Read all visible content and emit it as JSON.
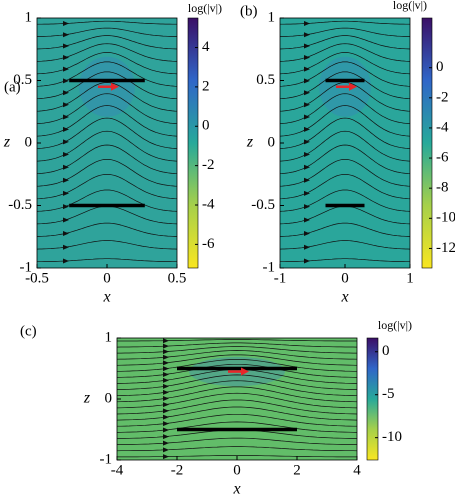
{
  "chart_data": [
    {
      "type": "streamline",
      "panel_label": "(a)",
      "xlabel": "x",
      "ylabel": "z",
      "xlim": [
        -0.5,
        0.5
      ],
      "ylim": [
        -1,
        1
      ],
      "xticks": [
        -0.5,
        0,
        0.5
      ],
      "yticks": [
        -1,
        -0.5,
        0,
        0.5,
        1
      ],
      "colorbar": {
        "label": "log(|v|)",
        "lim": [
          -7.2,
          5.5
        ],
        "ticks": [
          -6,
          -4,
          -2,
          0,
          2,
          4
        ]
      }
    },
    {
      "type": "streamline",
      "panel_label": "(b)",
      "xlabel": "x",
      "ylabel": "z",
      "xlim": [
        -1,
        1
      ],
      "ylim": [
        -1,
        1
      ],
      "xticks": [
        -1,
        0,
        1
      ],
      "yticks": [
        -1,
        -0.5,
        0,
        0.5,
        1
      ],
      "colorbar": {
        "label": "log(|v|)",
        "lim": [
          -13.3,
          3.3
        ],
        "ticks": [
          -12,
          -10,
          -8,
          -6,
          -4,
          -2,
          0
        ]
      }
    },
    {
      "type": "streamline",
      "panel_label": "(c)",
      "xlabel": "x",
      "ylabel": "z",
      "xlim": [
        -4,
        4
      ],
      "ylim": [
        -1,
        1
      ],
      "xticks": [
        -4,
        -2,
        0,
        2,
        4
      ],
      "yticks": [
        -1,
        0,
        1
      ],
      "colorbar": {
        "label": "log(|v|)",
        "lim": [
          -12.6,
          1.6
        ],
        "ticks": [
          -10,
          -5,
          0
        ]
      }
    }
  ]
}
